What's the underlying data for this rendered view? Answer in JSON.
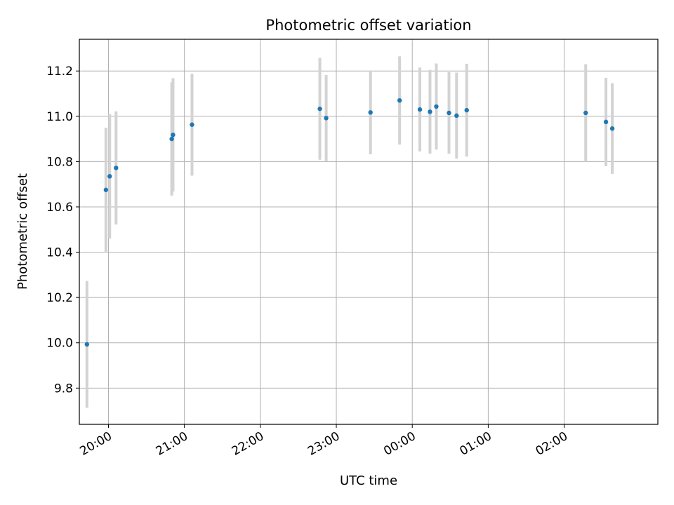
{
  "chart_data": {
    "type": "scatter",
    "title": "Photometric offset variation",
    "xlabel": "UTC time",
    "ylabel": "Photometric offset",
    "x_ticks": [
      "20:00",
      "21:00",
      "22:00",
      "23:00",
      "00:00",
      "01:00",
      "02:00"
    ],
    "y_ticks": [
      "9.8",
      "10.0",
      "10.2",
      "10.4",
      "10.6",
      "10.8",
      "11.0",
      "11.2"
    ],
    "xlim": [
      "19:37",
      "03:14"
    ],
    "ylim": [
      9.64,
      11.34
    ],
    "grid": true,
    "marker_color": "#1f77b4",
    "errorbar_color": "#d3d3d3",
    "series": [
      {
        "points": [
          {
            "x": "19:43",
            "y": 9.993,
            "err": 0.28
          },
          {
            "x": "19:58",
            "y": 10.675,
            "err": 0.275
          },
          {
            "x": "20:01",
            "y": 10.735,
            "err": 0.275
          },
          {
            "x": "20:06",
            "y": 10.772,
            "err": 0.25
          },
          {
            "x": "20:50",
            "y": 10.9,
            "err": 0.25
          },
          {
            "x": "20:51",
            "y": 10.918,
            "err": 0.25
          },
          {
            "x": "21:06",
            "y": 10.963,
            "err": 0.225
          },
          {
            "x": "22:47",
            "y": 11.033,
            "err": 0.225
          },
          {
            "x": "22:52",
            "y": 10.992,
            "err": 0.19
          },
          {
            "x": "23:27",
            "y": 11.017,
            "err": 0.185
          },
          {
            "x": "23:50",
            "y": 11.07,
            "err": 0.195
          },
          {
            "x": "00:06",
            "y": 11.03,
            "err": 0.185
          },
          {
            "x": "00:14",
            "y": 11.02,
            "err": 0.185
          },
          {
            "x": "00:19",
            "y": 11.043,
            "err": 0.19
          },
          {
            "x": "00:29",
            "y": 11.015,
            "err": 0.18
          },
          {
            "x": "00:35",
            "y": 11.003,
            "err": 0.19
          },
          {
            "x": "00:43",
            "y": 11.027,
            "err": 0.205
          },
          {
            "x": "02:17",
            "y": 11.015,
            "err": 0.215
          },
          {
            "x": "02:33",
            "y": 10.975,
            "err": 0.195
          },
          {
            "x": "02:38",
            "y": 10.946,
            "err": 0.2
          }
        ]
      }
    ]
  }
}
